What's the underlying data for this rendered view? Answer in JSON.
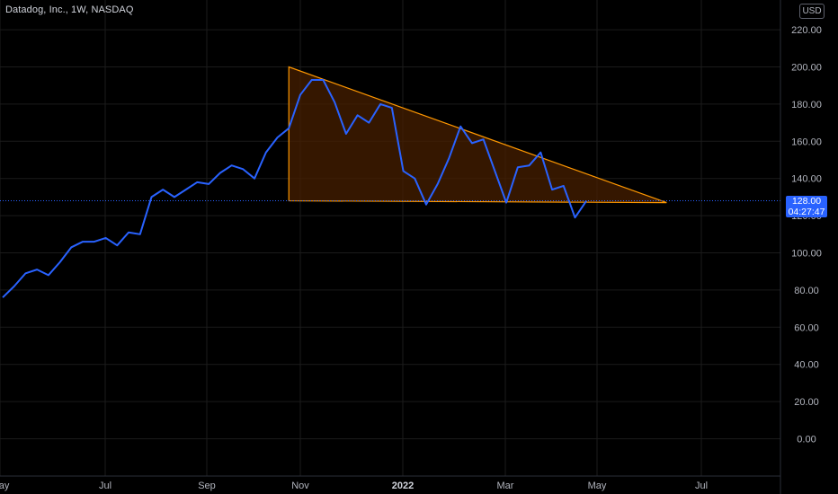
{
  "header": {
    "symbol_title": "Datadog, Inc., 1W, NASDAQ",
    "currency": "USD"
  },
  "last_price": {
    "value": "128.00",
    "countdown": "04:27:47",
    "color": "#2962ff"
  },
  "colors": {
    "background": "#000000",
    "grid": "#1b1b1b",
    "line": "#2962ff",
    "triangle_fill": "#4a2000",
    "triangle_stroke": "#ff9800",
    "axis_text": "#b2b5be"
  },
  "chart_data": {
    "type": "line",
    "title": "Datadog, Inc., 1W, NASDAQ",
    "x_tick_labels": [
      "May",
      "Jul",
      "Sep",
      "Nov",
      "2022",
      "Mar",
      "May",
      "Jul"
    ],
    "y_tick_labels": [
      "220.00",
      "200.00",
      "180.00",
      "160.00",
      "140.00",
      "120.00",
      "100.00",
      "80.00",
      "60.00",
      "40.00",
      "20.00",
      "0.00"
    ],
    "ylim": [
      -10,
      225
    ],
    "grid": true,
    "series": [
      {
        "values": [
          76,
          82,
          89,
          91,
          88,
          95,
          103,
          106,
          106,
          108,
          104,
          111,
          110,
          130,
          134,
          130,
          134,
          138,
          137,
          143,
          147,
          145,
          140,
          154,
          162,
          167,
          185,
          193,
          193,
          181,
          164,
          174,
          170,
          180,
          178,
          144,
          140,
          126,
          137,
          151,
          168,
          159,
          161,
          144,
          127,
          146,
          147,
          154,
          134,
          136,
          119,
          128
        ]
      }
    ],
    "annotations": [
      {
        "type": "descending-triangle",
        "vertices_week_price": [
          [
            25,
            200
          ],
          [
            25,
            128
          ],
          [
            58,
            127
          ]
        ]
      }
    ]
  }
}
